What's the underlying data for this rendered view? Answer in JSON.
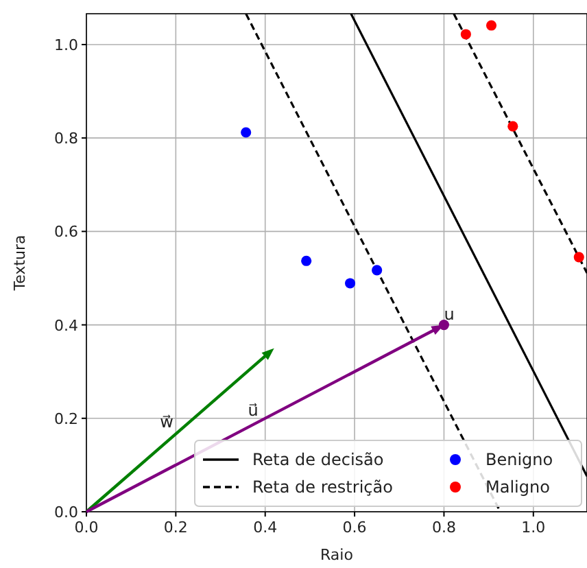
{
  "chart_data": {
    "type": "scatter",
    "xlabel": "Raio",
    "ylabel": "Textura",
    "xlim": [
      0,
      1.12
    ],
    "ylim": [
      0,
      1.066
    ],
    "xticks": [
      {
        "value": 0,
        "label": "0.0"
      },
      {
        "value": 0.2,
        "label": "0.2"
      },
      {
        "value": 0.4,
        "label": "0.4"
      },
      {
        "value": 0.6,
        "label": "0.6"
      },
      {
        "value": 0.8,
        "label": "0.8"
      },
      {
        "value": 1,
        "label": "1.0"
      }
    ],
    "yticks": [
      {
        "value": 0,
        "label": "0.0"
      },
      {
        "value": 0.2,
        "label": "0.2"
      },
      {
        "value": 0.4,
        "label": "0.4"
      },
      {
        "value": 0.6,
        "label": "0.6"
      },
      {
        "value": 0.8,
        "label": "0.8"
      },
      {
        "value": 1,
        "label": "1.0"
      }
    ],
    "grid": true,
    "legend": "bottom right",
    "series": [
      {
        "name": "Reta de decisão",
        "type": "line",
        "line_style": "solid",
        "color": "#000000",
        "x": [
          0.592,
          1.12
        ],
        "values": [
          1.066,
          0.076
        ]
      },
      {
        "name": "Reta de restrição",
        "type": "line",
        "line_style": "dashed",
        "color": "#000000",
        "x": [
          0.357,
          0.926
        ],
        "values": [
          1.066,
          0
        ]
      },
      {
        "type": "line",
        "line_style": "dashed",
        "color": "#000000",
        "x": [
          0.822,
          1.12
        ],
        "values": [
          1.066,
          0.511
        ]
      },
      {
        "name": "Benigno",
        "marker": "circle",
        "color": "#0000ff",
        "x": [
          0.357,
          0.492,
          0.59,
          0.65
        ],
        "values": [
          0.812,
          0.537,
          0.489,
          0.517
        ]
      },
      {
        "name": "Maligno",
        "marker": "circle",
        "color": "#ff0000",
        "x": [
          0.849,
          0.906,
          0.954,
          1.102
        ],
        "values": [
          1.022,
          1.041,
          0.825,
          0.545
        ]
      },
      {
        "marker": "circle",
        "color": "#800080",
        "x": [
          0.8
        ],
        "values": [
          0.4
        ]
      }
    ],
    "annotations": [
      {
        "text": "u",
        "x": 0.8,
        "y": 0.4
      },
      "w⃗",
      "u⃗"
    ]
  }
}
